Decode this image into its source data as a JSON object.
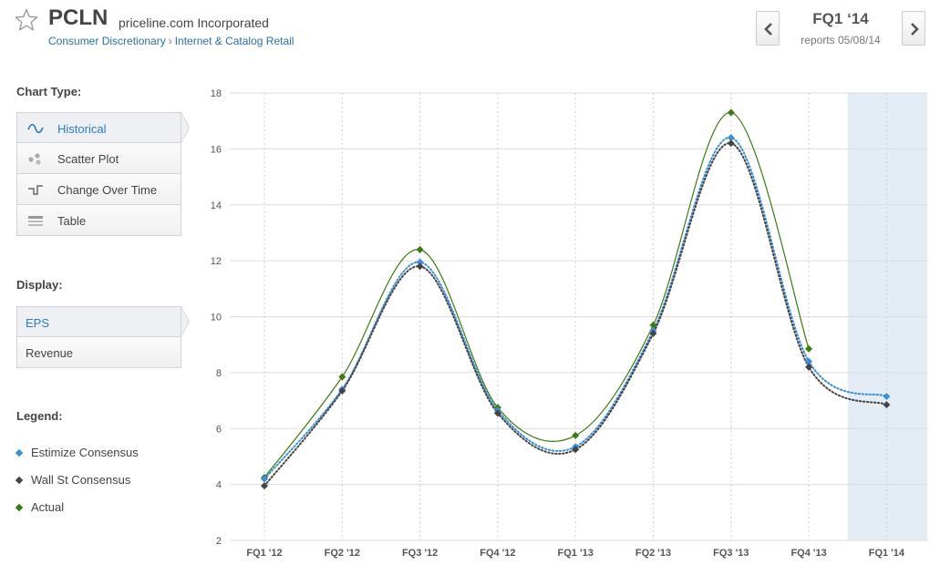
{
  "header": {
    "ticker": "PCLN",
    "company": "priceline.com Incorporated",
    "sector": "Consumer Discretionary",
    "breadcrumb_sep": "›",
    "industry": "Internet & Catalog Retail",
    "quarter": "FQ1 ‘14",
    "reports": "reports 05/08/14"
  },
  "sidebar": {
    "chart_type_label": "Chart Type:",
    "chart_types": [
      {
        "label": "Historical",
        "icon": "wave-icon"
      },
      {
        "label": "Scatter Plot",
        "icon": "scatter-icon"
      },
      {
        "label": "Change Over Time",
        "icon": "step-icon"
      },
      {
        "label": "Table",
        "icon": "table-icon"
      }
    ],
    "display_label": "Display:",
    "display_options": [
      {
        "label": "EPS"
      },
      {
        "label": "Revenue"
      }
    ],
    "legend_label": "Legend:"
  },
  "colors": {
    "estimize": "#3b8fd6",
    "wallst": "#444444",
    "actual": "#3d7a12",
    "accent": "#2a7bc0",
    "highlight": "#e4edf5"
  },
  "chart_data": {
    "type": "line",
    "categories": [
      "FQ1 '12",
      "FQ2 '12",
      "FQ3 '12",
      "FQ4 '12",
      "FQ1 '13",
      "FQ2 '13",
      "FQ3 '13",
      "FQ4 '13",
      "FQ1 '14"
    ],
    "ylim": [
      2,
      18
    ],
    "yticks": [
      2,
      4,
      6,
      8,
      10,
      12,
      14,
      16,
      18
    ],
    "highlight_category": "FQ1 '14",
    "grid": true,
    "series": [
      {
        "name": "Estimize Consensus",
        "color": "#3b8fd6",
        "style": "dotted",
        "values": [
          4.2,
          7.4,
          11.95,
          6.65,
          5.35,
          9.5,
          16.4,
          8.4,
          7.15
        ]
      },
      {
        "name": "Wall St Consensus",
        "color": "#444444",
        "style": "dotted",
        "values": [
          3.95,
          7.35,
          11.8,
          6.55,
          5.25,
          9.4,
          16.2,
          8.2,
          6.85
        ]
      },
      {
        "name": "Actual",
        "color": "#3d7a12",
        "style": "solid",
        "values": [
          4.25,
          7.85,
          12.4,
          6.75,
          5.75,
          9.7,
          17.3,
          8.85,
          null
        ]
      }
    ]
  }
}
